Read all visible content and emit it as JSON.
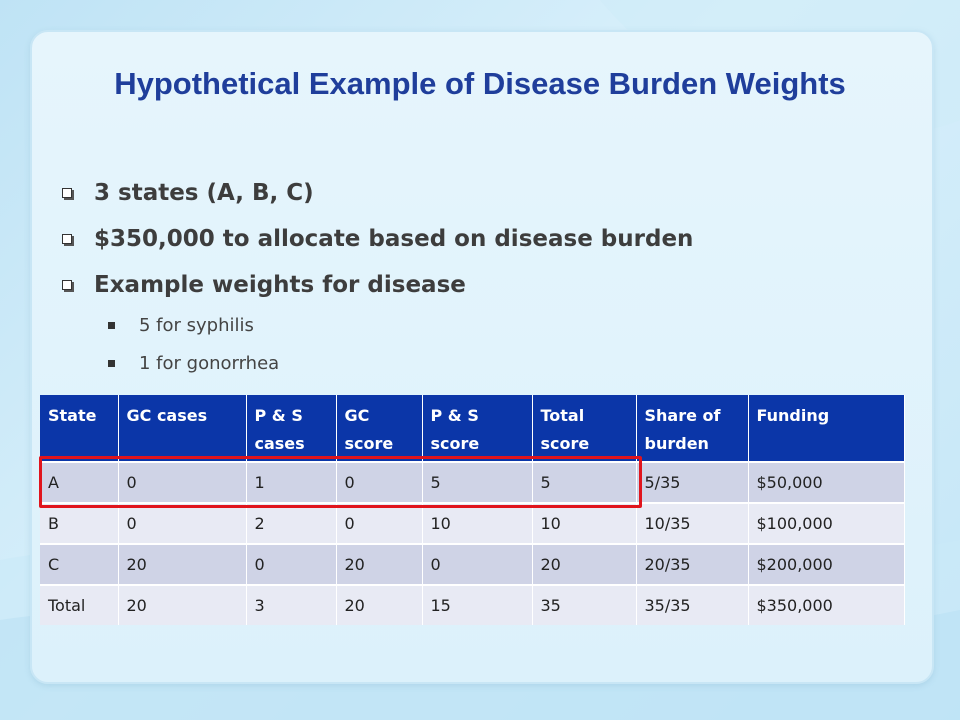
{
  "slide": {
    "title": "Hypothetical Example of Disease Burden Weights",
    "bullets": [
      "3 states (A, B, C)",
      "$350,000 to allocate based on disease burden",
      "Example weights for disease"
    ],
    "sub_bullets": [
      "5 for syphilis",
      "1 for gonorrhea"
    ]
  },
  "table": {
    "headers": [
      "State",
      "GC cases",
      "P & S cases",
      "GC score",
      "P & S score",
      "Total score",
      "Share of burden",
      "Funding"
    ],
    "rows": [
      [
        "A",
        "0",
        "1",
        "0",
        "5",
        "5",
        "5/35",
        "$50,000"
      ],
      [
        "B",
        "0",
        "2",
        "0",
        "10",
        "10",
        "10/35",
        "$100,000"
      ],
      [
        "C",
        "20",
        "0",
        "20",
        "0",
        "20",
        "20/35",
        "$200,000"
      ],
      [
        "Total",
        "20",
        "3",
        "20",
        "15",
        "35",
        "35/35",
        "$350,000"
      ]
    ],
    "highlight_color": "#e0141d",
    "header_color": "#0b36a8"
  }
}
